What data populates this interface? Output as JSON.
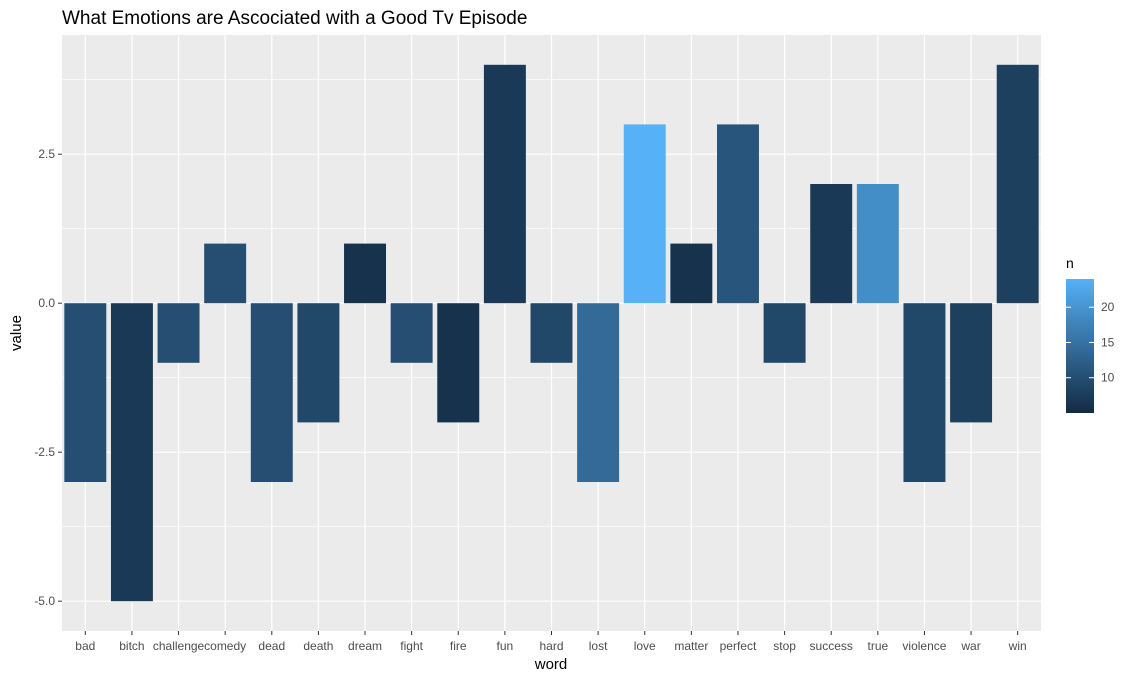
{
  "chart_data": {
    "type": "bar",
    "title": "What Emotions are Ascociated with a Good Tv Episode",
    "xlabel": "word",
    "ylabel": "value",
    "ylim": [
      -5.5,
      4.5
    ],
    "yticks": [
      -5.0,
      -2.5,
      0.0,
      2.5
    ],
    "ytick_labels": [
      "-5.0",
      "-2.5",
      "0.0",
      "2.5"
    ],
    "categories": [
      "bad",
      "bitch",
      "challenge",
      "comedy",
      "dead",
      "death",
      "dream",
      "fight",
      "fire",
      "fun",
      "hard",
      "lost",
      "love",
      "matter",
      "perfect",
      "stop",
      "success",
      "true",
      "violence",
      "war",
      "win"
    ],
    "values": [
      -3,
      -5,
      -1,
      1,
      -3,
      -2,
      1,
      -1,
      -2,
      4,
      -1,
      -3,
      3,
      1,
      3,
      -1,
      2,
      2,
      -3,
      -2,
      4
    ],
    "fill_variable": "n",
    "fill_values": [
      10,
      7,
      10,
      10,
      10,
      9,
      6,
      10,
      6,
      7,
      9,
      14,
      24,
      6,
      11,
      9,
      7,
      19,
      9,
      8,
      8
    ],
    "legend": {
      "title": "n",
      "position": "right",
      "range": [
        5,
        24
      ],
      "ticks": [
        10,
        15,
        20
      ],
      "tick_labels": [
        "10",
        "15",
        "20"
      ],
      "color_low": "#132B43",
      "color_high": "#56B1F7"
    },
    "panel_background": "#ebebeb",
    "grid": true
  }
}
